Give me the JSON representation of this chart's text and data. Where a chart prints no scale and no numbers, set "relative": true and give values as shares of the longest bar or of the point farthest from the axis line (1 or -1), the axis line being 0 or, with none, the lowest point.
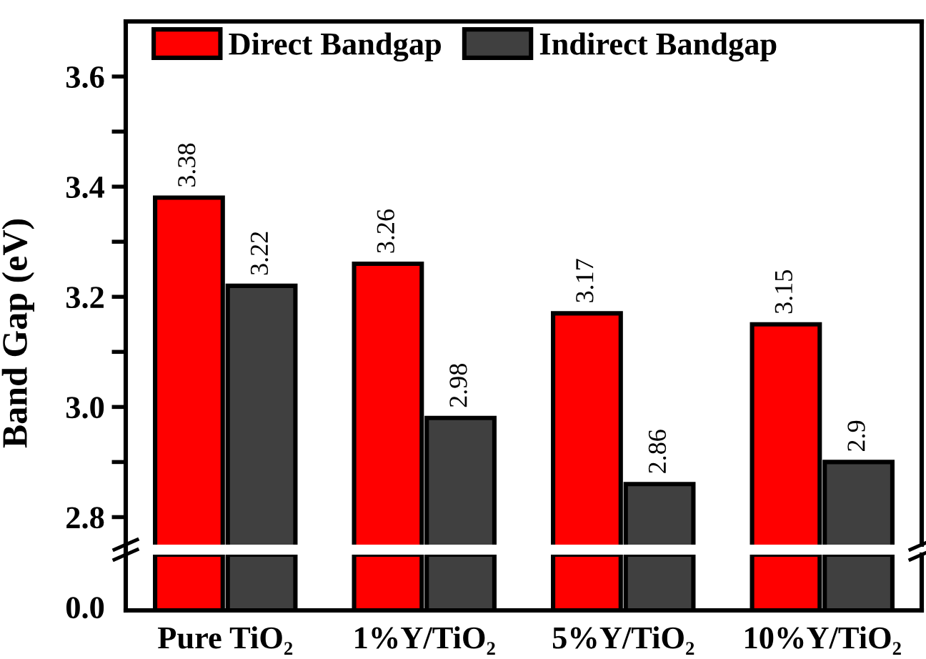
{
  "chart_data": [
    {
      "type": "bar",
      "ylabel": "Band Gap (eV)",
      "categories": [
        null,
        null,
        null,
        null
      ],
      "series": [
        {
          "name": "Direct Bandgap",
          "color": "#ff0000",
          "values": [
            3.38,
            3.26,
            3.17,
            3.15
          ]
        },
        {
          "name": "Indirect Bandgap",
          "color": "#404040",
          "values": [
            3.22,
            2.98,
            2.86,
            2.9
          ]
        }
      ],
      "ylim": [
        2.75,
        3.7
      ],
      "yticks": [
        {
          "value": 2.8,
          "label": "2.8"
        },
        {
          "value": 2.9,
          "label": null
        },
        {
          "value": 3.0,
          "label": "3.0"
        },
        {
          "value": 3.1,
          "label": null
        },
        {
          "value": 3.2,
          "label": "3.2"
        },
        {
          "value": 3.3,
          "label": null
        },
        {
          "value": 3.4,
          "label": "3.4"
        },
        {
          "value": 3.5,
          "label": null
        },
        {
          "value": 3.6,
          "label": "3.6"
        }
      ],
      "data_labels": true,
      "legend": "top left",
      "tick_labels": "y"
    },
    {
      "type": "bar",
      "relative": true,
      "categories": [
        "Pure TiO₂",
        "1%Y/TiO₂",
        "5%Y/TiO₂",
        "10%Y/TiO₂"
      ],
      "series": [
        {
          "color": "#ff0000",
          "values": [
            1,
            1,
            1,
            1
          ]
        },
        {
          "color": "#404040",
          "values": [
            1,
            1,
            1,
            1
          ]
        }
      ],
      "annotations": [
        "0.0"
      ]
    }
  ]
}
